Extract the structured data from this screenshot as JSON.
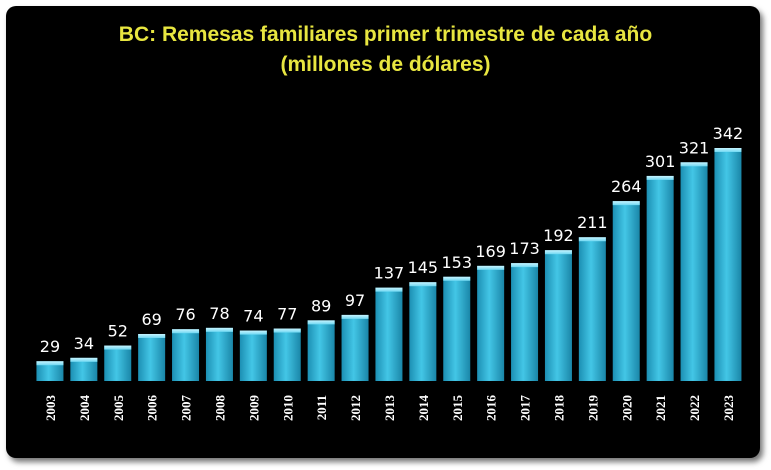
{
  "chart_data": {
    "type": "bar",
    "title": "BC: Remesas familiares primer trimestre de cada año",
    "subtitle": "(millones de dólares)",
    "categories": [
      "2003",
      "2004",
      "2005",
      "2006",
      "2007",
      "2008",
      "2009",
      "2010",
      "2011",
      "2012",
      "2013",
      "2014",
      "2015",
      "2016",
      "2017",
      "2018",
      "2019",
      "2020",
      "2021",
      "2022",
      "2023"
    ],
    "values": [
      29,
      34,
      52,
      69,
      76,
      78,
      74,
      77,
      89,
      97,
      137,
      145,
      153,
      169,
      173,
      192,
      211,
      264,
      301,
      321,
      342
    ],
    "data_labels": true,
    "grid": false,
    "legend": "none",
    "colors": {
      "background": "#000000",
      "bar": "#2fb6d8",
      "bar_top": "#8fe6fa",
      "title": "#e8e640",
      "text": "#ffffff"
    }
  }
}
